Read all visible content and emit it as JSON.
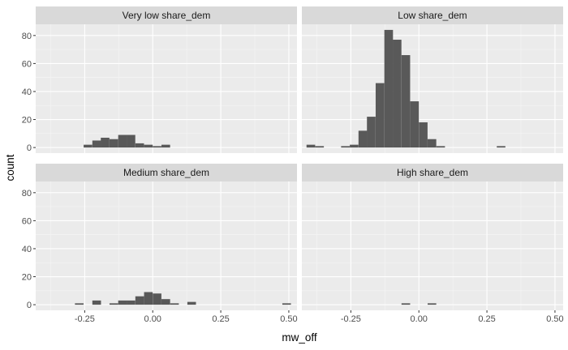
{
  "chart_data": {
    "type": "bar",
    "subtype": "faceted-histogram",
    "xlabel": "mw_off",
    "ylabel": "count",
    "xlim": [
      -0.43,
      0.53
    ],
    "ylim": [
      -4,
      88
    ],
    "x_ticks": [
      -0.25,
      0.0,
      0.25,
      0.5
    ],
    "x_tick_labels": [
      "-0.25",
      "0.00",
      "0.25",
      "0.50"
    ],
    "y_ticks": [
      0,
      20,
      40,
      60,
      80
    ],
    "y_tick_labels": [
      "0",
      "20",
      "40",
      "60",
      "80"
    ],
    "bin_width": 0.0317,
    "grid": true,
    "colors": {
      "panel_bg": "#ebebeb",
      "grid_major": "#ffffff",
      "strip_bg": "#d9d9d9",
      "bar": "#595959"
    },
    "facets": [
      {
        "label": "Very low share_dem",
        "bins": [
          {
            "x": -0.238,
            "count": 2
          },
          {
            "x": -0.206,
            "count": 5
          },
          {
            "x": -0.175,
            "count": 7
          },
          {
            "x": -0.143,
            "count": 6
          },
          {
            "x": -0.111,
            "count": 9
          },
          {
            "x": -0.08,
            "count": 9
          },
          {
            "x": -0.048,
            "count": 3
          },
          {
            "x": -0.016,
            "count": 2
          },
          {
            "x": 0.016,
            "count": 1
          },
          {
            "x": 0.048,
            "count": 2
          }
        ]
      },
      {
        "label": "Low share_dem",
        "bins": [
          {
            "x": -0.397,
            "count": 2
          },
          {
            "x": -0.365,
            "count": 1
          },
          {
            "x": -0.27,
            "count": 1
          },
          {
            "x": -0.238,
            "count": 2
          },
          {
            "x": -0.206,
            "count": 12
          },
          {
            "x": -0.175,
            "count": 22
          },
          {
            "x": -0.143,
            "count": 46
          },
          {
            "x": -0.111,
            "count": 84
          },
          {
            "x": -0.08,
            "count": 77
          },
          {
            "x": -0.048,
            "count": 66
          },
          {
            "x": -0.016,
            "count": 33
          },
          {
            "x": 0.016,
            "count": 18
          },
          {
            "x": 0.048,
            "count": 6
          },
          {
            "x": 0.08,
            "count": 1
          },
          {
            "x": 0.302,
            "count": 1
          }
        ]
      },
      {
        "label": "Medium share_dem",
        "bins": [
          {
            "x": -0.27,
            "count": 1
          },
          {
            "x": -0.206,
            "count": 3
          },
          {
            "x": -0.143,
            "count": 1
          },
          {
            "x": -0.111,
            "count": 3
          },
          {
            "x": -0.08,
            "count": 3
          },
          {
            "x": -0.048,
            "count": 6
          },
          {
            "x": -0.016,
            "count": 9
          },
          {
            "x": 0.016,
            "count": 8
          },
          {
            "x": 0.048,
            "count": 4
          },
          {
            "x": 0.08,
            "count": 1
          },
          {
            "x": 0.143,
            "count": 2
          },
          {
            "x": 0.492,
            "count": 1
          }
        ]
      },
      {
        "label": "High share_dem",
        "bins": [
          {
            "x": -0.048,
            "count": 1
          },
          {
            "x": 0.048,
            "count": 1
          }
        ]
      }
    ]
  }
}
